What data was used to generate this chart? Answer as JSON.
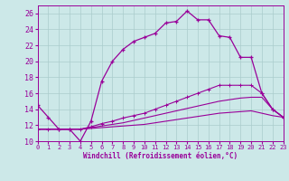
{
  "xlabel": "Windchill (Refroidissement éolien,°C)",
  "bg_color": "#cce8e8",
  "grid_color": "#aacccc",
  "line_color": "#990099",
  "xlim": [
    0,
    23
  ],
  "ylim": [
    10,
    27
  ],
  "yticks": [
    10,
    12,
    14,
    16,
    18,
    20,
    22,
    24,
    26
  ],
  "xticks": [
    0,
    1,
    2,
    3,
    4,
    5,
    6,
    7,
    8,
    9,
    10,
    11,
    12,
    13,
    14,
    15,
    16,
    17,
    18,
    19,
    20,
    21,
    22,
    23
  ],
  "line1_x": [
    0,
    1,
    2,
    3,
    4,
    5,
    6,
    7,
    8,
    9,
    10,
    11,
    12,
    13,
    14,
    15,
    16,
    17,
    18,
    19,
    20,
    21,
    22,
    23
  ],
  "line1_y": [
    14.5,
    13.0,
    11.5,
    11.5,
    10.0,
    12.5,
    17.5,
    20.0,
    21.5,
    22.5,
    23.0,
    23.5,
    24.8,
    25.0,
    26.3,
    25.2,
    25.2,
    23.2,
    23.0,
    20.5,
    20.5,
    16.0,
    14.0,
    13.0
  ],
  "line2_x": [
    0,
    1,
    2,
    3,
    4,
    5,
    6,
    7,
    8,
    9,
    10,
    11,
    12,
    13,
    14,
    15,
    16,
    17,
    18,
    19,
    20,
    21,
    22,
    23
  ],
  "line2_y": [
    11.5,
    11.5,
    11.5,
    11.5,
    11.5,
    11.8,
    12.2,
    12.5,
    12.9,
    13.2,
    13.5,
    14.0,
    14.5,
    15.0,
    15.5,
    16.0,
    16.5,
    17.0,
    17.0,
    17.0,
    17.0,
    16.0,
    14.0,
    13.0
  ],
  "line3_x": [
    0,
    1,
    2,
    3,
    4,
    5,
    6,
    7,
    8,
    9,
    10,
    11,
    12,
    13,
    14,
    15,
    16,
    17,
    18,
    19,
    20,
    21,
    22,
    23
  ],
  "line3_y": [
    11.5,
    11.5,
    11.5,
    11.5,
    11.5,
    11.7,
    11.9,
    12.1,
    12.3,
    12.6,
    12.9,
    13.2,
    13.5,
    13.8,
    14.1,
    14.4,
    14.7,
    15.0,
    15.2,
    15.4,
    15.5,
    15.5,
    14.0,
    13.0
  ],
  "line4_x": [
    0,
    1,
    2,
    3,
    4,
    5,
    6,
    7,
    8,
    9,
    10,
    11,
    12,
    13,
    14,
    15,
    16,
    17,
    18,
    19,
    20,
    21,
    22,
    23
  ],
  "line4_y": [
    11.5,
    11.5,
    11.5,
    11.5,
    11.5,
    11.6,
    11.7,
    11.8,
    11.9,
    12.0,
    12.1,
    12.3,
    12.5,
    12.7,
    12.9,
    13.1,
    13.3,
    13.5,
    13.6,
    13.7,
    13.8,
    13.5,
    13.2,
    13.0
  ]
}
